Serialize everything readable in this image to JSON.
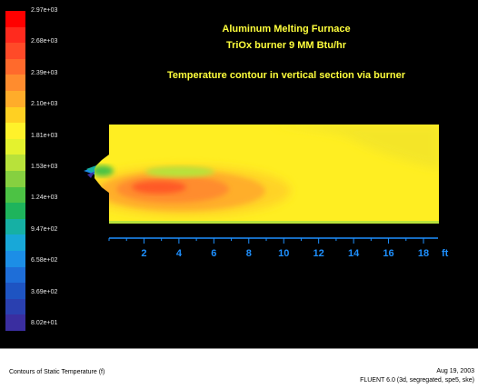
{
  "titles": {
    "line1": "Aluminum Melting Furnace",
    "line2": "TriOx burner 9 MM Btu/hr",
    "line3": "Temperature contour in vertical section via burner"
  },
  "colorbar": {
    "labels": [
      "2.97e+03",
      "2.68e+03",
      "2.39e+03",
      "2.10e+03",
      "1.81e+03",
      "1.53e+03",
      "1.24e+03",
      "9.47e+02",
      "6.58e+02",
      "3.69e+02",
      "8.02e+01"
    ],
    "colors": [
      "#ff0000",
      "#ff2a1e",
      "#ff4a28",
      "#ff6a2c",
      "#ff8c2e",
      "#ffac2a",
      "#ffd022",
      "#fff22a",
      "#e4f22e",
      "#b8e23a",
      "#86d040",
      "#4cc244",
      "#1eb45c",
      "#16b0a4",
      "#18a8d8",
      "#1c8ee6",
      "#1e6ed8",
      "#1e54c2",
      "#2a40b0",
      "#3a2ea0"
    ],
    "value_min": 80.2,
    "value_max": 2970
  },
  "axis": {
    "ticks": [
      "2",
      "4",
      "6",
      "8",
      "10",
      "12",
      "14",
      "16",
      "18"
    ],
    "unit": "ft",
    "color": "#1e90ff"
  },
  "colors": {
    "title": "#ffff3c",
    "furnace_fill": "#ffee22"
  },
  "caption": {
    "description": "Contours of Static Temperature (f)",
    "date": "Aug 19, 2003",
    "solver": "FLUENT 6.0 (3d, segregated, spe5, ske)"
  }
}
